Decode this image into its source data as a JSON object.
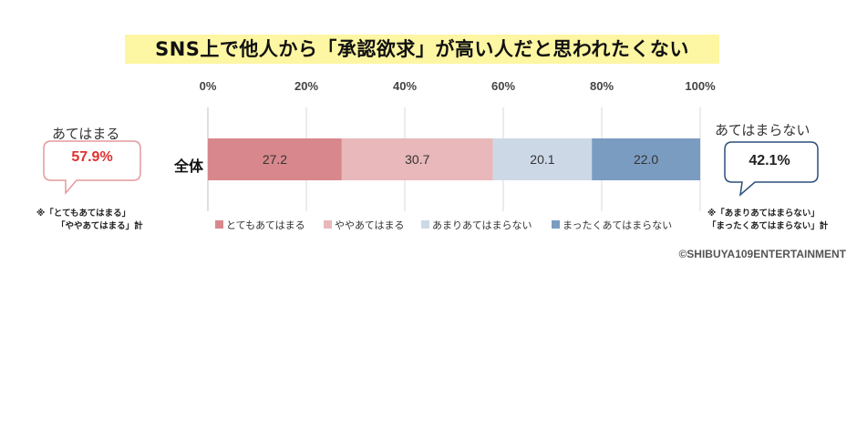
{
  "chart_data": {
    "type": "bar",
    "orientation": "horizontal",
    "stacked": true,
    "title": "SNS上で他人から「承認欲求」が高い人だと思われたくない",
    "categories": [
      "全体"
    ],
    "series": [
      {
        "name": "とてもあてはまる",
        "values": [
          27.2
        ],
        "color": "#d8888c"
      },
      {
        "name": "ややあてはまる",
        "values": [
          30.7
        ],
        "color": "#e8b8ba"
      },
      {
        "name": "あまりあてはまらない",
        "values": [
          20.1
        ],
        "color": "#cdd8e7"
      },
      {
        "name": "まったくあてはまらない",
        "values": [
          22.0
        ],
        "color": "#7a9cc1"
      }
    ],
    "xlim": [
      0,
      100
    ],
    "x_ticks": [
      "0%",
      "20%",
      "40%",
      "60%",
      "80%",
      "100%"
    ],
    "grid": true,
    "legend_position": "bottom"
  },
  "callouts": {
    "left": {
      "heading": "あてはまる",
      "value": "57.9%",
      "color": "#e0302f",
      "border": "#e39a9c",
      "note_line1": "※「とてもあてはまる」",
      "note_line2": "「ややあてはまる」計"
    },
    "right": {
      "heading": "あてはまらない",
      "value": "42.1%",
      "color": "#222222",
      "border": "#2c4f7c",
      "note_line1": "※「あまりあてはまらない」",
      "note_line2": "「まったくあてはまらない」計"
    }
  },
  "credit": "©SHIBUYA109ENTERTAINMENT"
}
